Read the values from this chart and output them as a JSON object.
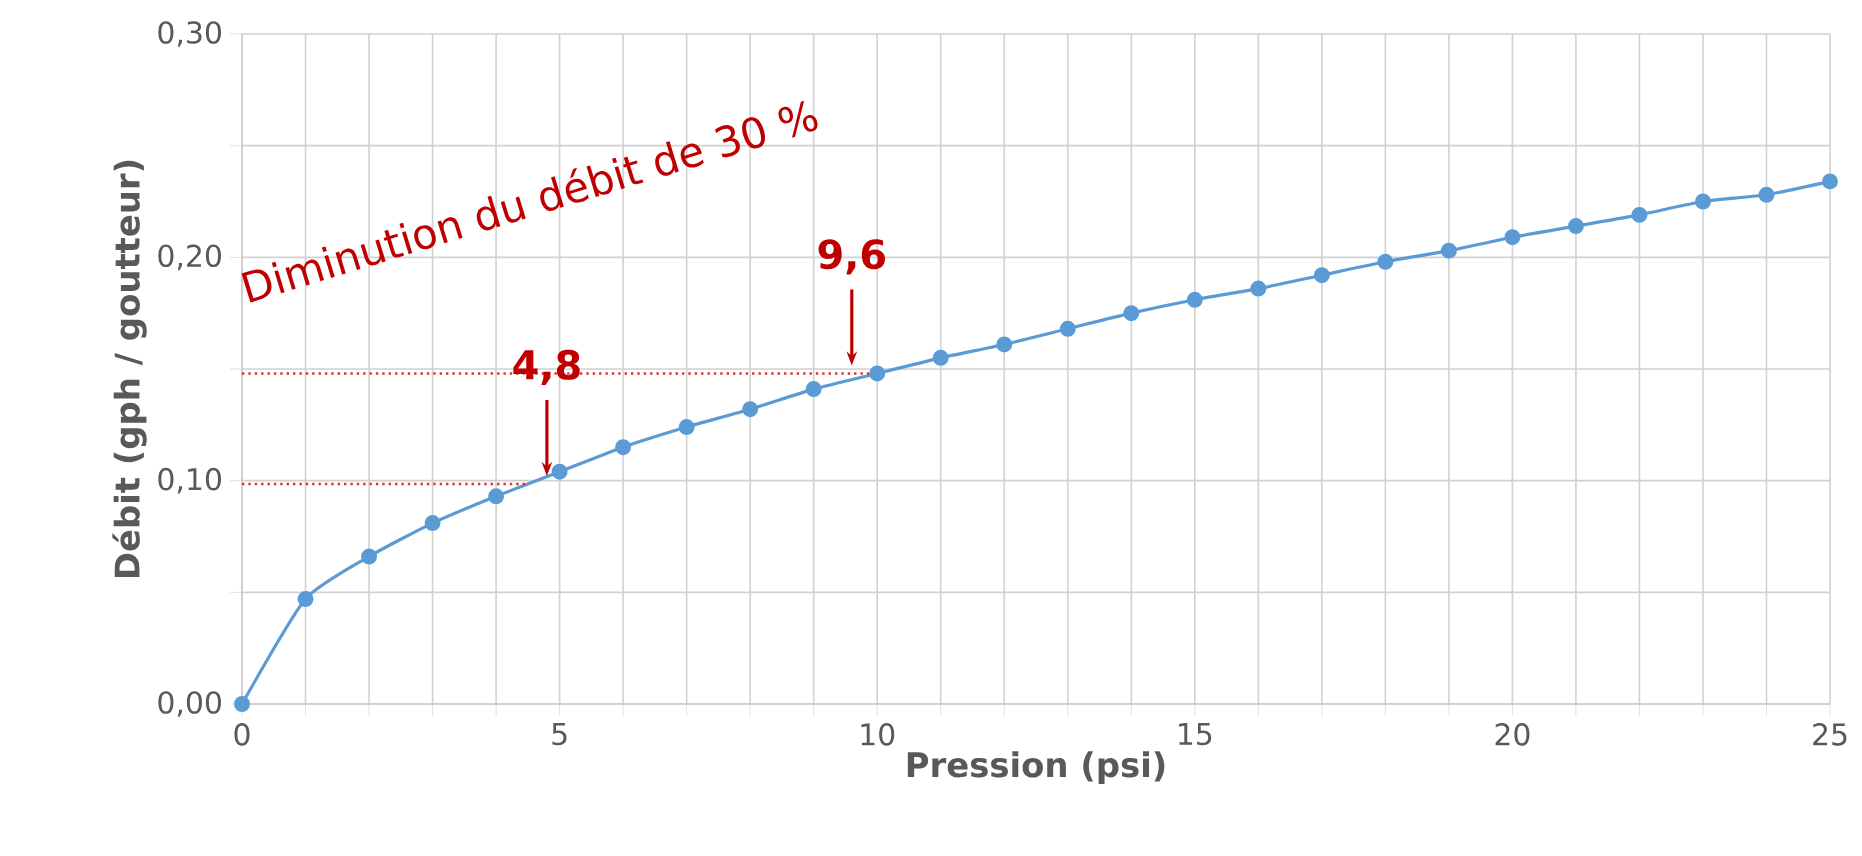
{
  "chart_data": {
    "type": "line",
    "xlabel": "Pression (psi)",
    "ylabel": "Débit (gph / goutteur)",
    "x": [
      0,
      1,
      2,
      3,
      4,
      5,
      6,
      7,
      8,
      9,
      10,
      11,
      12,
      13,
      14,
      15,
      16,
      17,
      18,
      19,
      20,
      21,
      22,
      23,
      24,
      25
    ],
    "series": [
      {
        "color": "#5b9bd5",
        "values": [
          0,
          0.047,
          0.066,
          0.081,
          0.093,
          0.104,
          0.115,
          0.124,
          0.132,
          0.141,
          0.148,
          0.155,
          0.161,
          0.168,
          0.175,
          0.181,
          0.186,
          0.192,
          0.198,
          0.203,
          0.209,
          0.214,
          0.219,
          0.225,
          0.228,
          0.234
        ]
      }
    ],
    "xlim": [
      0,
      25
    ],
    "xticks": [
      0,
      {
        "value": 1,
        "label": null
      },
      {
        "value": 2,
        "label": null
      },
      {
        "value": 3,
        "label": null
      },
      {
        "value": 4,
        "label": null
      },
      5,
      {
        "value": 6,
        "label": null
      },
      {
        "value": 7,
        "label": null
      },
      {
        "value": 8,
        "label": null
      },
      {
        "value": 9,
        "label": null
      },
      10,
      {
        "value": 11,
        "label": null
      },
      {
        "value": 12,
        "label": null
      },
      {
        "value": 13,
        "label": null
      },
      {
        "value": 14,
        "label": null
      },
      15,
      {
        "value": 16,
        "label": null
      },
      {
        "value": 17,
        "label": null
      },
      {
        "value": 18,
        "label": null
      },
      {
        "value": 19,
        "label": null
      },
      20,
      {
        "value": 21,
        "label": null
      },
      {
        "value": 22,
        "label": null
      },
      {
        "value": 23,
        "label": null
      },
      {
        "value": 24,
        "label": null
      },
      25
    ],
    "ylim": [
      0,
      0.3
    ],
    "yticks": [
      {
        "value": 0,
        "label": "0,00"
      },
      {
        "value": 0.05,
        "label": null
      },
      {
        "value": 0.1,
        "label": "0,10"
      },
      {
        "value": 0.15,
        "label": null
      },
      {
        "value": 0.2,
        "label": "0,20"
      },
      {
        "value": 0.25,
        "label": null
      },
      {
        "value": 0.3,
        "label": "0,30"
      }
    ],
    "grid": true,
    "marker": "circle",
    "line_style": "solid",
    "legend": false,
    "ref_lines": [
      {
        "axis": "y",
        "value": 0.0985,
        "color": "#e03030",
        "line_style": "dotted"
      },
      {
        "axis": "y",
        "value": 0.148,
        "color": "#e03030",
        "line_style": "dotted"
      }
    ],
    "annotations": [
      "Diminution du débit de 30 %",
      {
        "text": "4,8",
        "x": 4.8,
        "y": 0.0985
      },
      {
        "text": "9,6",
        "x": 9.6,
        "y": 0.148
      }
    ]
  }
}
